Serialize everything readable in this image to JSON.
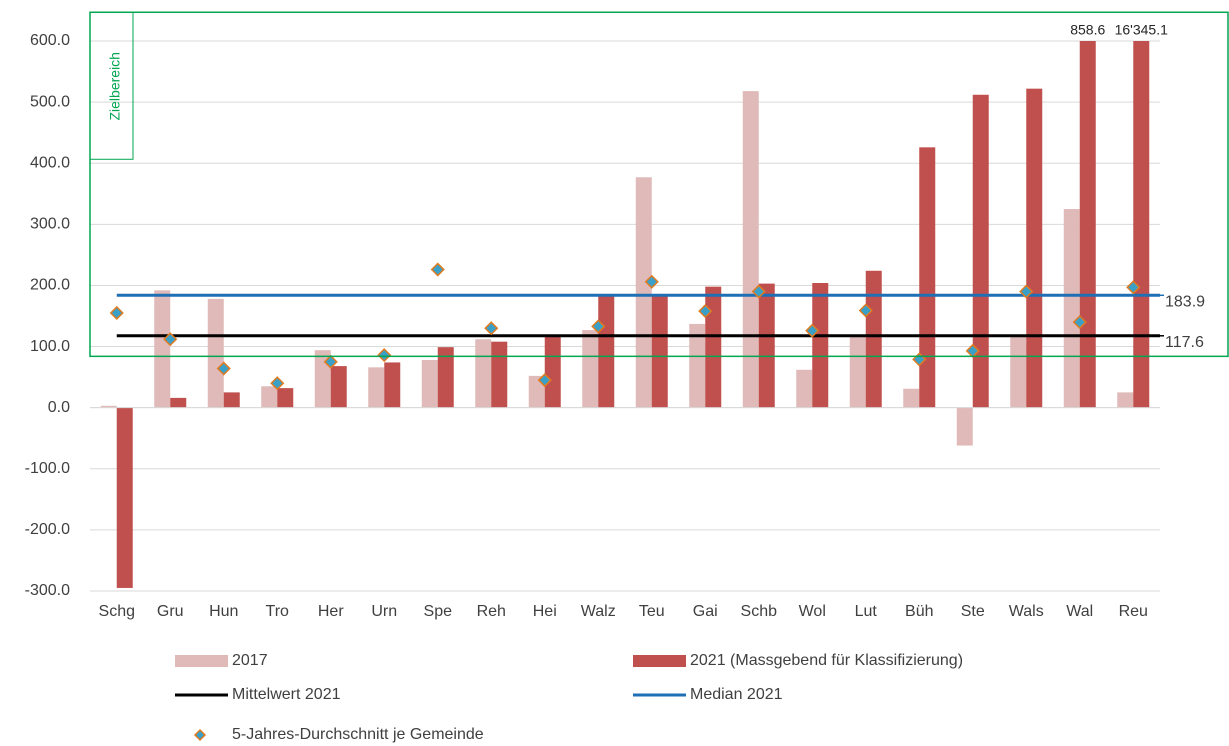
{
  "chart_data": {
    "type": "bar",
    "categories": [
      "Schg",
      "Gru",
      "Hun",
      "Tro",
      "Her",
      "Urn",
      "Spe",
      "Reh",
      "Hei",
      "Walz",
      "Teu",
      "Gai",
      "Schb",
      "Wol",
      "Lut",
      "Büh",
      "Ste",
      "Wals",
      "Wal",
      "Reu"
    ],
    "series": [
      {
        "name": "2017",
        "type": "bar",
        "color": "#e0b9b9",
        "values": [
          3,
          192,
          178,
          35,
          94,
          66,
          78,
          112,
          52,
          127,
          377,
          137,
          518,
          62,
          117,
          31,
          -62,
          117,
          325,
          25
        ]
      },
      {
        "name": "2021 (Massgebend für Klassifizierung)",
        "type": "bar",
        "color": "#c0504d",
        "values": [
          -295,
          16,
          25,
          32,
          68,
          74,
          99,
          108,
          117,
          183,
          183,
          198,
          203,
          204,
          224,
          426,
          512,
          522,
          858.6,
          16345.1
        ],
        "value_labels": [
          null,
          null,
          null,
          null,
          null,
          null,
          null,
          null,
          null,
          null,
          null,
          null,
          null,
          null,
          null,
          null,
          null,
          null,
          "858.6",
          "16'345.1"
        ]
      },
      {
        "name": "5-Jahres-Durchschnitt je Gemeinde",
        "type": "scatter",
        "color": "#3aa0c8",
        "edge_color": "#e07b20",
        "values": [
          155,
          112,
          64,
          40,
          75,
          86,
          226,
          130,
          45,
          133,
          206,
          158,
          190,
          126,
          159,
          79,
          93,
          190,
          140,
          197
        ]
      }
    ],
    "reference_lines": [
      {
        "name": "Mittelwert 2021",
        "color": "#000000",
        "value": 117.6
      },
      {
        "name": "Median 2021",
        "color": "#1f6fb5",
        "value": 183.9
      }
    ],
    "target_zone": {
      "label": "Zielbereich",
      "color": "#00a650",
      "range": [
        84,
        647
      ]
    },
    "ylim": [
      -300,
      600
    ],
    "yticks": [
      {
        "value": -300,
        "label": "-300.0"
      },
      {
        "value": -200,
        "label": "-200.0"
      },
      {
        "value": -100,
        "label": "-100.0"
      },
      {
        "value": 0,
        "label": "0.0"
      },
      {
        "value": 100,
        "label": "100.0"
      },
      {
        "value": 200,
        "label": "200.0"
      },
      {
        "value": 300,
        "label": "300.0"
      },
      {
        "value": 400,
        "label": "400.0"
      },
      {
        "value": 500,
        "label": "500.0"
      },
      {
        "value": 600,
        "label": "600.0"
      }
    ],
    "grid": true
  }
}
